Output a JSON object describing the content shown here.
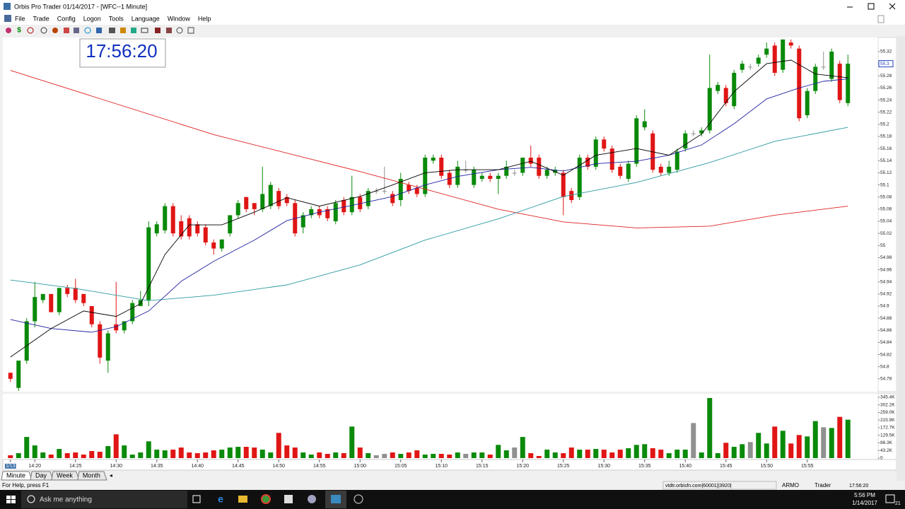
{
  "window": {
    "title": "Orbis Pro Trader  01/14/2017 - [WFC--1 Minute]"
  },
  "menu": [
    "File",
    "Trade",
    "Config",
    "Logon",
    "Tools",
    "Language",
    "Window",
    "Help"
  ],
  "clock": "17:56:20",
  "chart_data": {
    "type": "candlestick",
    "categories": [
      "1/13",
      null,
      null,
      "14:20",
      null,
      null,
      null,
      null,
      "14:25",
      null,
      null,
      null,
      null,
      "14:30",
      null,
      null,
      null,
      null,
      "14:35",
      null,
      null,
      null,
      null,
      "14:40",
      null,
      null,
      null,
      null,
      "14:45",
      null,
      null,
      null,
      null,
      "14:50",
      null,
      null,
      null,
      null,
      "14:55",
      null,
      null,
      null,
      null,
      "15:00",
      null,
      null,
      null,
      null,
      "15:05",
      null,
      null,
      null,
      null,
      "15:10",
      null,
      null,
      null,
      null,
      "15:15",
      null,
      null,
      null,
      null,
      "15:20",
      null,
      null,
      null,
      null,
      "15:25",
      null,
      null,
      null,
      null,
      "15:30",
      null,
      null,
      null,
      null,
      "15:35",
      null,
      null,
      null,
      null,
      "15:40",
      null,
      null,
      null,
      null,
      "15:45",
      null,
      null,
      null,
      null,
      "15:50",
      null,
      null,
      null,
      null,
      "15:55",
      null,
      null,
      null,
      null,
      null
    ],
    "open": [
      54.79,
      54.765,
      54.81,
      54.875,
      54.91,
      54.92,
      54.89,
      54.93,
      54.93,
      54.92,
      54.9,
      54.87,
      54.81,
      54.87,
      54.86,
      54.875,
      54.9,
      54.91,
      55.02,
      55.025,
      55.065,
      55.04,
      55.045,
      55.035,
      55.03,
      55.005,
      54.995,
      55.02,
      55.05,
      55.08,
      55.07,
      55.06,
      55.065,
      55.09,
      55.08,
      55.07,
      55.03,
      55.05,
      55.06,
      55.06,
      55.04,
      55.075,
      55.055,
      55.08,
      55.065,
      55.09,
      55.09,
      55.085,
      55.075,
      55.1,
      55.095,
      55.085,
      55.14,
      55.145,
      55.12,
      55.1,
      55.125,
      55.1,
      55.11,
      55.115,
      55.11,
      55.115,
      55.12,
      55.12,
      55.145,
      55.145,
      55.115,
      55.12,
      55.12,
      55.09,
      55.08,
      55.145,
      55.13,
      55.175,
      55.16,
      55.13,
      55.11,
      55.135,
      55.195,
      55.185,
      55.13,
      55.12,
      55.125,
      55.16,
      55.185,
      55.185,
      55.19,
      55.255,
      55.26,
      55.23,
      55.29,
      55.295,
      55.3,
      55.315,
      55.33,
      55.29,
      55.335,
      55.325,
      55.215,
      55.255,
      55.295,
      55.275,
      55.3,
      55.235
    ],
    "high": [
      54.79,
      54.81,
      54.88,
      54.94,
      54.92,
      54.92,
      54.93,
      54.935,
      54.945,
      54.92,
      54.9,
      54.875,
      54.86,
      54.94,
      54.875,
      54.91,
      54.925,
      55.04,
      55.04,
      55.07,
      55.07,
      55.05,
      55.05,
      55.04,
      55.035,
      55.01,
      55.01,
      55.05,
      55.075,
      55.08,
      55.07,
      55.13,
      55.105,
      55.095,
      55.085,
      55.075,
      55.055,
      55.065,
      55.065,
      55.065,
      55.075,
      55.08,
      55.115,
      55.085,
      55.095,
      55.095,
      55.13,
      55.09,
      55.12,
      55.105,
      55.1,
      55.15,
      55.15,
      55.15,
      55.125,
      55.14,
      55.14,
      55.13,
      55.12,
      55.12,
      55.12,
      55.14,
      55.125,
      55.145,
      55.165,
      55.15,
      55.13,
      55.13,
      55.125,
      55.095,
      55.15,
      55.15,
      55.18,
      55.18,
      55.165,
      55.135,
      55.14,
      55.215,
      55.225,
      55.19,
      55.135,
      55.14,
      55.16,
      55.19,
      55.19,
      55.195,
      55.315,
      55.27,
      55.265,
      55.29,
      55.305,
      55.3,
      55.315,
      55.335,
      55.335,
      55.34,
      55.34,
      55.33,
      55.26,
      55.3,
      55.32,
      55.325,
      55.305,
      55.315
    ],
    "low": [
      54.775,
      54.76,
      54.805,
      54.865,
      54.905,
      54.89,
      54.885,
      54.915,
      54.905,
      54.9,
      54.865,
      54.805,
      54.79,
      54.855,
      54.855,
      54.87,
      54.9,
      54.9,
      55.015,
      55.02,
      55.015,
      55.01,
      55.01,
      55.015,
      55.0,
      54.985,
      54.99,
      55.015,
      55.045,
      55.055,
      55.05,
      55.055,
      55.06,
      55.06,
      55.065,
      55.015,
      55.02,
      55.045,
      55.045,
      55.04,
      55.035,
      55.05,
      55.05,
      55.055,
      55.06,
      55.085,
      55.085,
      55.065,
      55.065,
      55.085,
      55.08,
      55.08,
      55.135,
      55.11,
      55.095,
      55.095,
      55.12,
      55.095,
      55.105,
      55.105,
      55.085,
      55.11,
      55.115,
      55.115,
      55.13,
      55.11,
      55.11,
      55.115,
      55.05,
      55.07,
      55.075,
      55.125,
      55.125,
      55.155,
      55.12,
      55.11,
      55.105,
      55.13,
      55.19,
      55.12,
      55.115,
      55.115,
      55.12,
      55.155,
      55.18,
      55.18,
      55.185,
      55.25,
      55.23,
      55.225,
      55.285,
      55.29,
      55.295,
      55.31,
      55.28,
      55.285,
      55.325,
      55.205,
      55.21,
      55.25,
      55.29,
      55.27,
      55.235,
      55.23
    ],
    "close": [
      54.78,
      54.81,
      54.875,
      54.915,
      54.92,
      54.89,
      54.93,
      54.92,
      54.91,
      54.905,
      54.87,
      54.815,
      54.855,
      54.86,
      54.875,
      54.905,
      54.91,
      55.03,
      55.035,
      55.065,
      55.02,
      55.015,
      55.015,
      55.02,
      55.005,
      54.995,
      55.01,
      55.05,
      55.07,
      55.06,
      55.06,
      55.085,
      55.1,
      55.065,
      55.07,
      55.02,
      55.05,
      55.06,
      55.05,
      55.045,
      55.07,
      55.055,
      55.08,
      55.06,
      55.09,
      55.09,
      55.09,
      55.07,
      55.11,
      55.09,
      55.085,
      55.145,
      55.145,
      55.115,
      55.1,
      55.13,
      55.125,
      55.125,
      55.115,
      55.11,
      55.115,
      55.13,
      55.12,
      55.145,
      55.135,
      55.115,
      55.125,
      55.125,
      55.08,
      55.075,
      55.145,
      55.13,
      55.175,
      55.16,
      55.125,
      55.115,
      55.135,
      55.21,
      55.205,
      55.125,
      55.12,
      55.13,
      55.155,
      55.185,
      55.185,
      55.19,
      55.26,
      55.265,
      55.235,
      55.285,
      55.3,
      55.295,
      55.31,
      55.325,
      55.285,
      55.34,
      55.33,
      55.21,
      55.255,
      55.295,
      55.295,
      55.32,
      55.24,
      55.3
    ],
    "up_color": "#0a8a0a",
    "down_color": "#e01515",
    "flat_color": "#909090",
    "ylim": [
      54.76,
      55.341
    ],
    "yticks": [
      54.78,
      54.8,
      54.82,
      54.84,
      54.86,
      54.88,
      54.9,
      54.92,
      54.94,
      54.96,
      54.98,
      55,
      55.02,
      55.04,
      55.06,
      55.08,
      55.1,
      55.12,
      55.14,
      55.16,
      55.18,
      55.2,
      55.22,
      55.24,
      55.26,
      55.28,
      55.3,
      55.32
    ],
    "last_price": 55.3,
    "overlays": [
      {
        "color": "#e02020",
        "x": [
          0,
          25,
          43,
          51,
          60,
          68,
          77,
          86,
          94,
          103
        ],
        "values": [
          55.289,
          55.183,
          55.122,
          55.093,
          55.06,
          55.039,
          55.029,
          55.032,
          55.05,
          55.065
        ]
      },
      {
        "color": "#2a9aa0",
        "x": [
          0,
          8,
          17,
          25,
          34,
          43,
          51,
          60,
          68,
          77,
          86,
          94,
          103
        ],
        "values": [
          54.943,
          54.929,
          54.909,
          54.918,
          54.935,
          54.968,
          55.009,
          55.044,
          55.081,
          55.104,
          55.137,
          55.172,
          55.195
        ]
      },
      {
        "color": "#2020a0",
        "x": [
          0,
          5,
          10,
          13,
          17,
          21,
          25,
          30,
          34,
          38,
          43,
          47,
          51,
          55,
          60,
          64,
          68,
          72,
          77,
          81,
          85,
          89,
          93,
          97,
          100,
          103
        ],
        "values": [
          54.878,
          54.863,
          54.857,
          54.866,
          54.892,
          54.941,
          54.974,
          55.009,
          55.041,
          55.055,
          55.069,
          55.081,
          55.1,
          55.114,
          55.125,
          55.129,
          55.123,
          55.135,
          55.139,
          55.149,
          55.166,
          55.201,
          55.242,
          55.26,
          55.271,
          55.275
        ]
      },
      {
        "color": "#000000",
        "x": [
          0,
          5,
          9,
          13,
          16,
          19,
          22,
          26,
          30,
          34,
          38,
          43,
          47,
          51,
          55,
          60,
          64,
          68,
          72,
          77,
          81,
          85,
          89,
          93,
          96,
          99,
          103
        ],
        "values": [
          54.816,
          54.863,
          54.892,
          54.883,
          54.904,
          54.985,
          55.034,
          55.034,
          55.055,
          55.079,
          55.065,
          55.081,
          55.1,
          55.12,
          55.125,
          55.125,
          55.139,
          55.116,
          55.149,
          55.16,
          55.149,
          55.184,
          55.254,
          55.3,
          55.306,
          55.283,
          55.277
        ]
      }
    ],
    "volume": {
      "values": [
        16000,
        28000,
        120000,
        72000,
        32000,
        20000,
        52000,
        28000,
        32000,
        20000,
        40000,
        36000,
        68000,
        135000,
        72000,
        20000,
        32000,
        95000,
        48000,
        44000,
        48000,
        60000,
        32000,
        28000,
        32000,
        44000,
        48000,
        60000,
        64000,
        64000,
        60000,
        48000,
        32000,
        143000,
        72000,
        60000,
        32000,
        20000,
        32000,
        24000,
        32000,
        28000,
        179000,
        60000,
        28000,
        16000,
        24000,
        32000,
        24000,
        32000,
        44000,
        20000,
        24000,
        24000,
        20000,
        32000,
        24000,
        32000,
        32000,
        20000,
        75000,
        44000,
        60000,
        120000,
        28000,
        12000,
        48000,
        32000,
        28000,
        60000,
        48000,
        48000,
        52000,
        48000,
        32000,
        48000,
        56000,
        75000,
        79000,
        56000,
        48000,
        28000,
        48000,
        48000,
        199000,
        32000,
        341000,
        28000,
        87000,
        64000,
        79000,
        91000,
        143000,
        83000,
        179000,
        155000,
        83000,
        131000,
        123000,
        210000,
        175000,
        171000,
        234000,
        218000
      ],
      "ylim": [
        0,
        365000
      ],
      "yticks": [
        0,
        {
          "value": 43200,
          "label": "43.2K"
        },
        {
          "value": 86300,
          "label": "86.3K"
        },
        {
          "value": 129500,
          "label": "129.5K"
        },
        {
          "value": 172700,
          "label": "172.7K"
        },
        {
          "value": 215900,
          "label": "215.9K"
        },
        {
          "value": 259000,
          "label": "259.0K"
        },
        {
          "value": 302200,
          "label": "302.2K"
        },
        {
          "value": 345400,
          "label": "345.4K"
        }
      ]
    }
  },
  "tabs": [
    "Minute",
    "Day",
    "Week",
    "Month"
  ],
  "status": {
    "help": "For Help, press F1",
    "server": "vtdtr.orbisfn.com|60001||3920|",
    "account": "ARMO",
    "role": "Trader",
    "time": "17:56:20"
  },
  "taskbar": {
    "search": "Ask me anything",
    "time": "5:56 PM",
    "date": "1/14/2017",
    "notifications": "21"
  }
}
